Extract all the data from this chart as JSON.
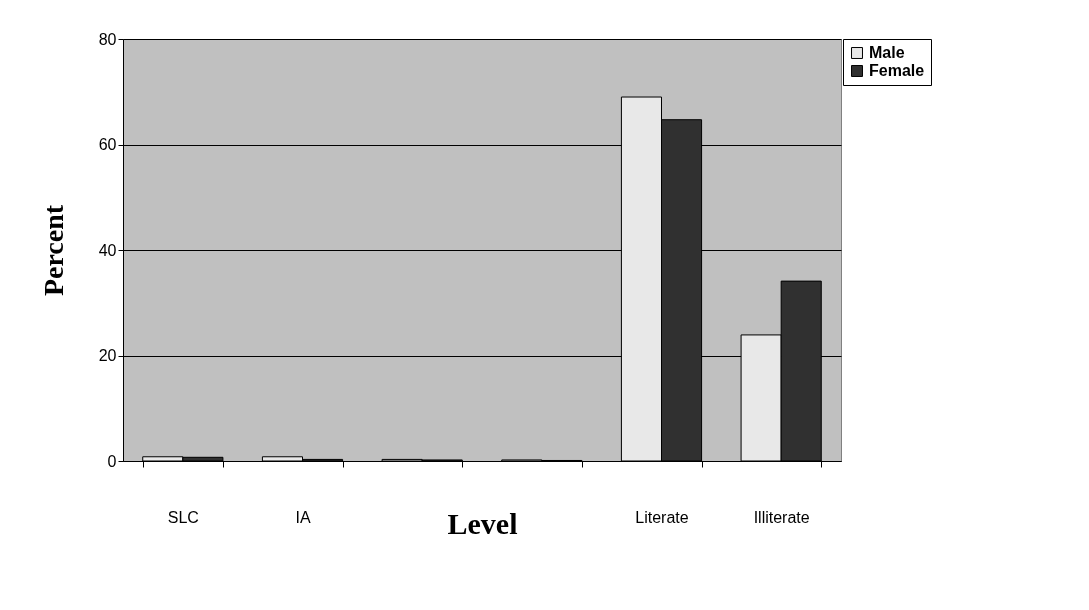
{
  "chart_data": {
    "type": "bar",
    "xlabel": "Level",
    "ylabel": "Percent",
    "categories": [
      "SLC",
      "IA",
      null,
      null,
      "Literate",
      "Illiterate"
    ],
    "series": [
      {
        "name": "Male",
        "color": "#e8e8e8",
        "values": [
          0.8,
          0.8,
          0.3,
          0.2,
          69,
          23.9
        ]
      },
      {
        "name": "Female",
        "color": "#303030",
        "values": [
          0.7,
          0.3,
          0.2,
          0.1,
          64.7,
          34.1
        ]
      }
    ],
    "ylim": [
      0,
      80
    ],
    "yticks": [
      0,
      20,
      40,
      60,
      80
    ],
    "grid": "y",
    "legend": "top right"
  }
}
